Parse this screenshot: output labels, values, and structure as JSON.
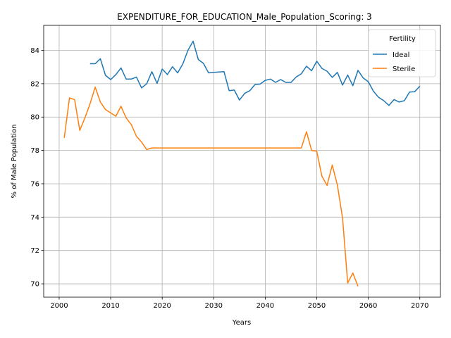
{
  "chart_data": {
    "type": "line",
    "title": "EXPENDITURE_FOR_EDUCATION_Male_Population_Scoring: 3",
    "xlabel": "Years",
    "ylabel": "% of Male Population",
    "xlim": [
      1997,
      2074
    ],
    "ylim": [
      69.2,
      85.5
    ],
    "xticks": [
      2000,
      2010,
      2020,
      2030,
      2040,
      2050,
      2060,
      2070
    ],
    "yticks": [
      70,
      72,
      74,
      76,
      78,
      80,
      82,
      84
    ],
    "grid": true,
    "legend": {
      "title": "Fertility",
      "placement": "top-right"
    },
    "series": [
      {
        "name": "Ideal",
        "color": "#1f77b4",
        "x": [
          2006,
          2007,
          2008,
          2009,
          2010,
          2011,
          2012,
          2013,
          2014,
          2015,
          2016,
          2017,
          2018,
          2019,
          2020,
          2021,
          2022,
          2023,
          2024,
          2025,
          2026,
          2027,
          2028,
          2029,
          2030,
          2031,
          2032,
          2033,
          2034,
          2035,
          2036,
          2037,
          2038,
          2039,
          2040,
          2041,
          2042,
          2043,
          2044,
          2045,
          2046,
          2047,
          2048,
          2049,
          2050,
          2051,
          2052,
          2053,
          2054,
          2055,
          2056,
          2057,
          2058,
          2059,
          2060,
          2061,
          2062,
          2063,
          2064,
          2065,
          2066,
          2067,
          2068,
          2069,
          2070
        ],
        "values": [
          83.2,
          83.2,
          83.5,
          82.5,
          82.25,
          82.55,
          82.95,
          82.28,
          82.28,
          82.4,
          81.75,
          82.0,
          82.72,
          82.02,
          82.88,
          82.55,
          83.02,
          82.65,
          83.18,
          84.0,
          84.55,
          83.45,
          83.22,
          82.65,
          82.68,
          82.7,
          82.72,
          81.58,
          81.62,
          81.02,
          81.42,
          81.58,
          81.95,
          81.98,
          82.2,
          82.28,
          82.08,
          82.25,
          82.08,
          82.08,
          82.4,
          82.6,
          83.05,
          82.78,
          83.35,
          82.92,
          82.75,
          82.38,
          82.68,
          81.92,
          82.52,
          81.88,
          82.8,
          82.35,
          82.12,
          81.55,
          81.18,
          80.98,
          80.7,
          81.05,
          80.9,
          80.98,
          81.5,
          81.52,
          81.85
        ]
      },
      {
        "name": "Sterile",
        "color": "#ff7f0e",
        "x": [
          2001,
          2002,
          2003,
          2004,
          2005,
          2006,
          2007,
          2008,
          2009,
          2010,
          2011,
          2012,
          2013,
          2014,
          2015,
          2016,
          2017,
          2018,
          2019,
          2020,
          2021,
          2022,
          2023,
          2024,
          2025,
          2026,
          2027,
          2028,
          2029,
          2030,
          2031,
          2032,
          2033,
          2034,
          2035,
          2036,
          2037,
          2038,
          2039,
          2040,
          2041,
          2042,
          2043,
          2044,
          2045,
          2046,
          2047,
          2048,
          2049,
          2050,
          2051,
          2052,
          2053,
          2054,
          2055,
          2056,
          2057,
          2058
        ],
        "values": [
          78.75,
          81.15,
          81.05,
          79.2,
          79.95,
          80.8,
          81.8,
          80.9,
          80.45,
          80.25,
          80.05,
          80.65,
          79.95,
          79.55,
          78.85,
          78.5,
          78.05,
          78.15,
          78.15,
          78.15,
          78.15,
          78.15,
          78.15,
          78.15,
          78.15,
          78.15,
          78.15,
          78.15,
          78.15,
          78.15,
          78.15,
          78.15,
          78.15,
          78.15,
          78.15,
          78.15,
          78.15,
          78.15,
          78.15,
          78.15,
          78.15,
          78.15,
          78.15,
          78.15,
          78.15,
          78.15,
          78.15,
          79.12,
          78.0,
          77.95,
          76.45,
          75.9,
          77.12,
          75.92,
          73.95,
          70.05,
          70.65,
          69.85
        ]
      }
    ]
  }
}
